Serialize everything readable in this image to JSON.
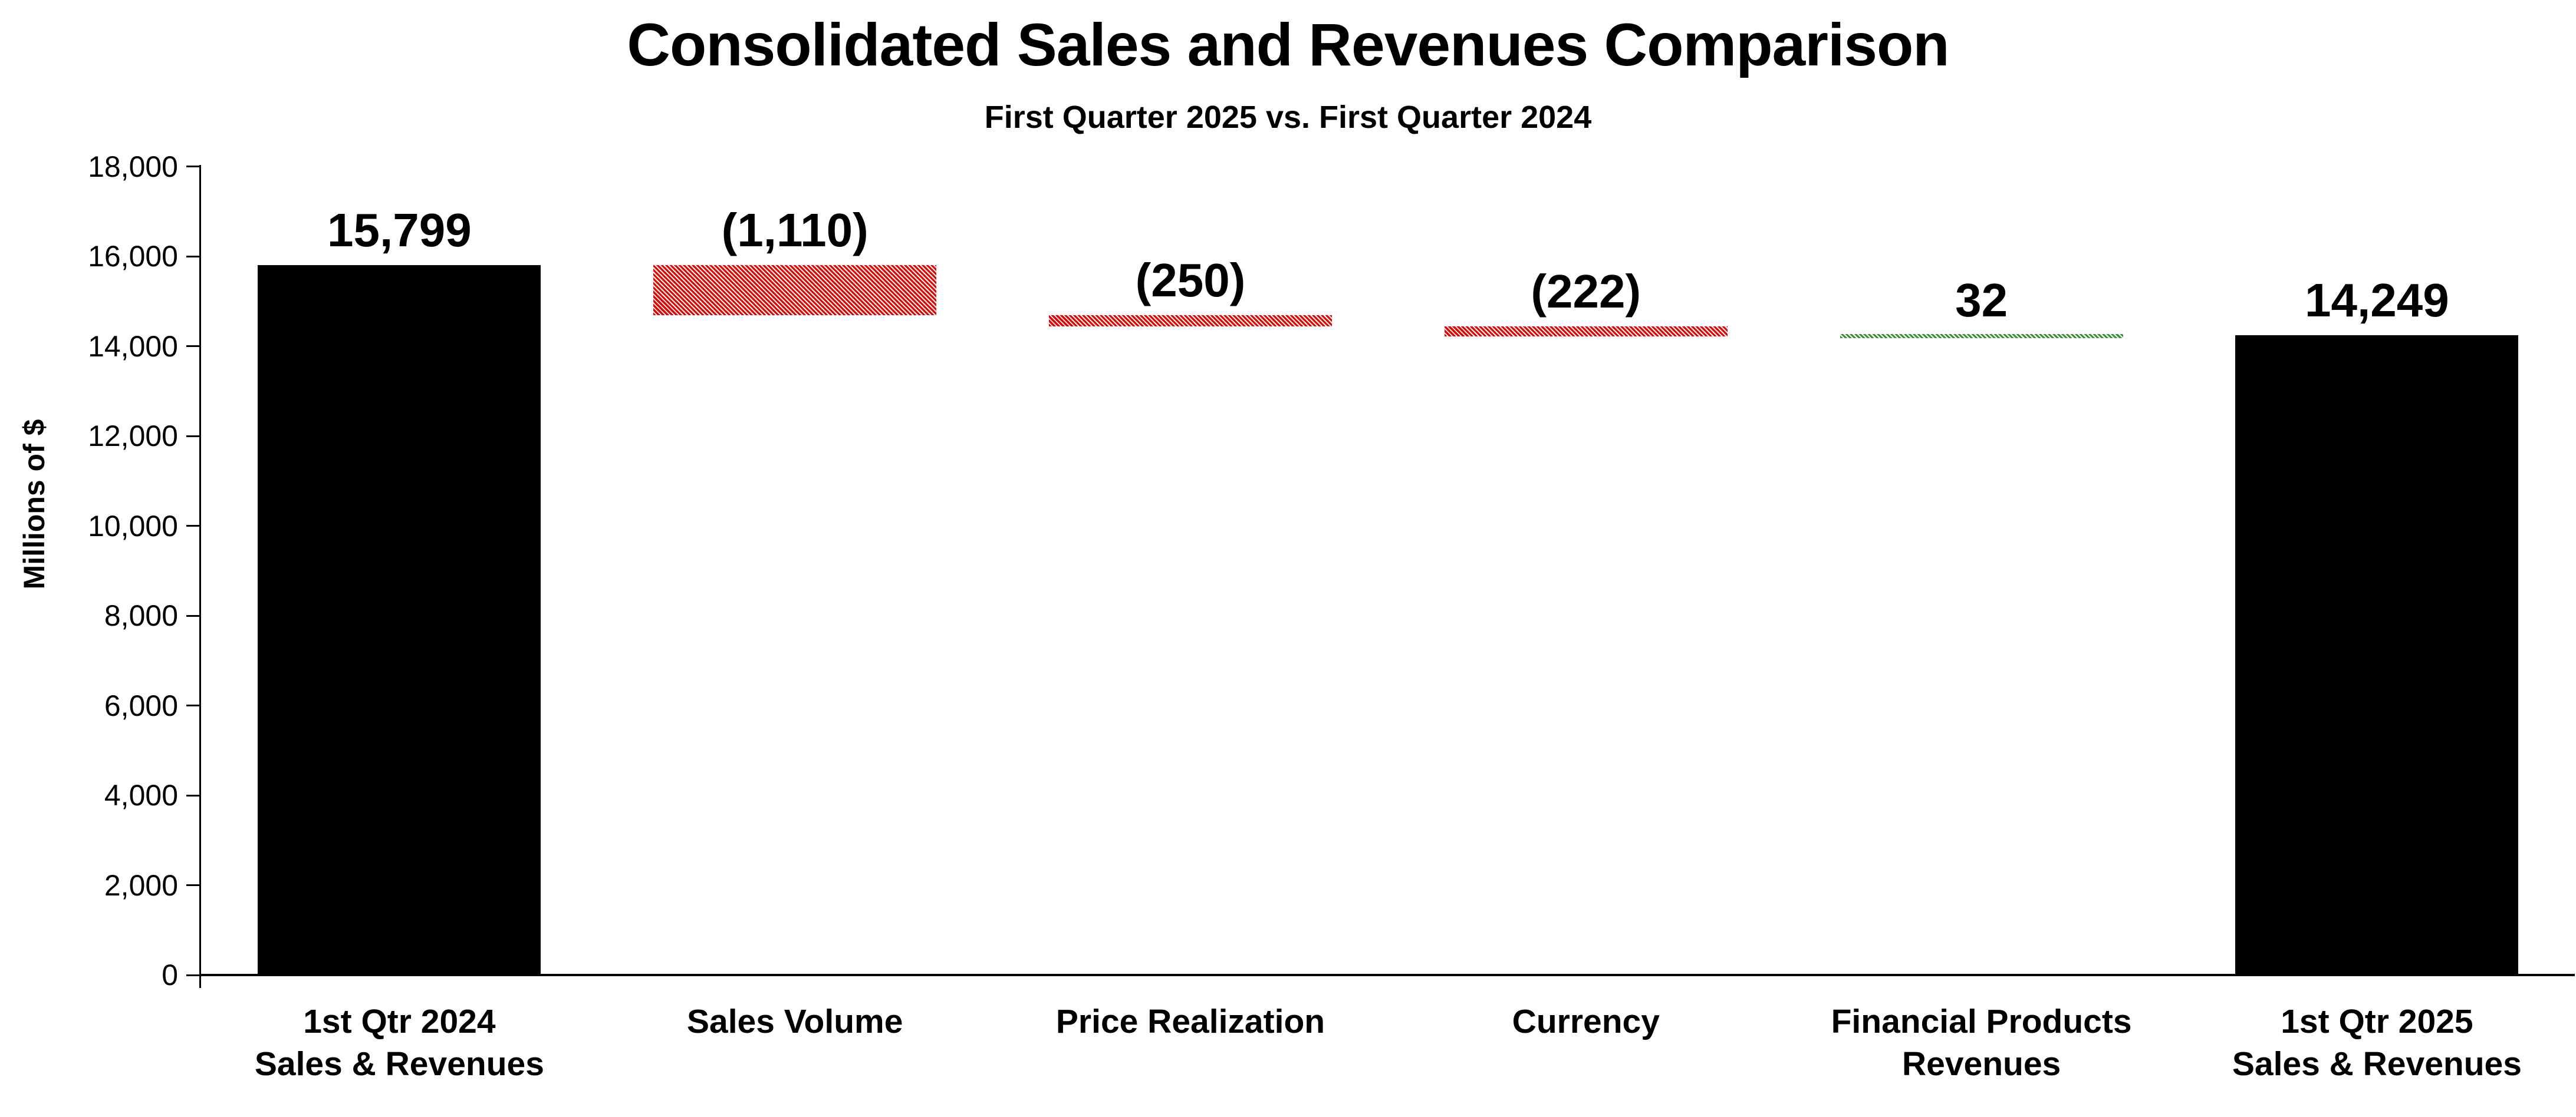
{
  "title": "Consolidated Sales and Revenues Comparison",
  "subtitle": "First Quarter 2025 vs. First Quarter 2024",
  "y_axis": {
    "label": "Millions of $",
    "tick_labels": [
      "0",
      "2,000",
      "4,000",
      "6,000",
      "8,000",
      "10,000",
      "12,000",
      "14,000",
      "16,000",
      "18,000"
    ]
  },
  "chart_data": {
    "type": "bar",
    "subtype": "waterfall",
    "title": "Consolidated Sales and Revenues Comparison",
    "subtitle": "First Quarter 2025 vs. First Quarter 2024",
    "xlabel": "",
    "ylabel": "Millions of $",
    "ylim": [
      0,
      18000
    ],
    "ytick_step": 2000,
    "grid": "off",
    "legend": "none",
    "categories": [
      "1st Qtr 2024 Sales & Revenues",
      "Sales Volume",
      "Price Realization",
      "Currency",
      "Financial Products Revenues",
      "1st Qtr 2025 Sales & Revenues"
    ],
    "bars": [
      {
        "category_line1": "1st Qtr 2024",
        "category_line2": "Sales & Revenues",
        "label": "15,799",
        "value": 15799,
        "start": 0,
        "end": 15799,
        "kind": "total"
      },
      {
        "category_line1": "Sales Volume",
        "category_line2": "",
        "label": "(1,110)",
        "value": -1110,
        "start": 15799,
        "end": 14689,
        "kind": "decrease"
      },
      {
        "category_line1": "Price Realization",
        "category_line2": "",
        "label": "(250)",
        "value": -250,
        "start": 14689,
        "end": 14439,
        "kind": "decrease"
      },
      {
        "category_line1": "Currency",
        "category_line2": "",
        "label": "(222)",
        "value": -222,
        "start": 14439,
        "end": 14217,
        "kind": "decrease"
      },
      {
        "category_line1": "Financial Products",
        "category_line2": "Revenues",
        "label": "32",
        "value": 32,
        "start": 14217,
        "end": 14249,
        "kind": "increase"
      },
      {
        "category_line1": "1st Qtr 2025",
        "category_line2": "Sales & Revenues",
        "label": "14,249",
        "value": 14249,
        "start": 0,
        "end": 14249,
        "kind": "total"
      }
    ],
    "colors": {
      "total": "#000000",
      "decrease": "#E60000",
      "increase": "#3A8F3A",
      "text": "#000000",
      "background": "#FFFFFF"
    }
  }
}
